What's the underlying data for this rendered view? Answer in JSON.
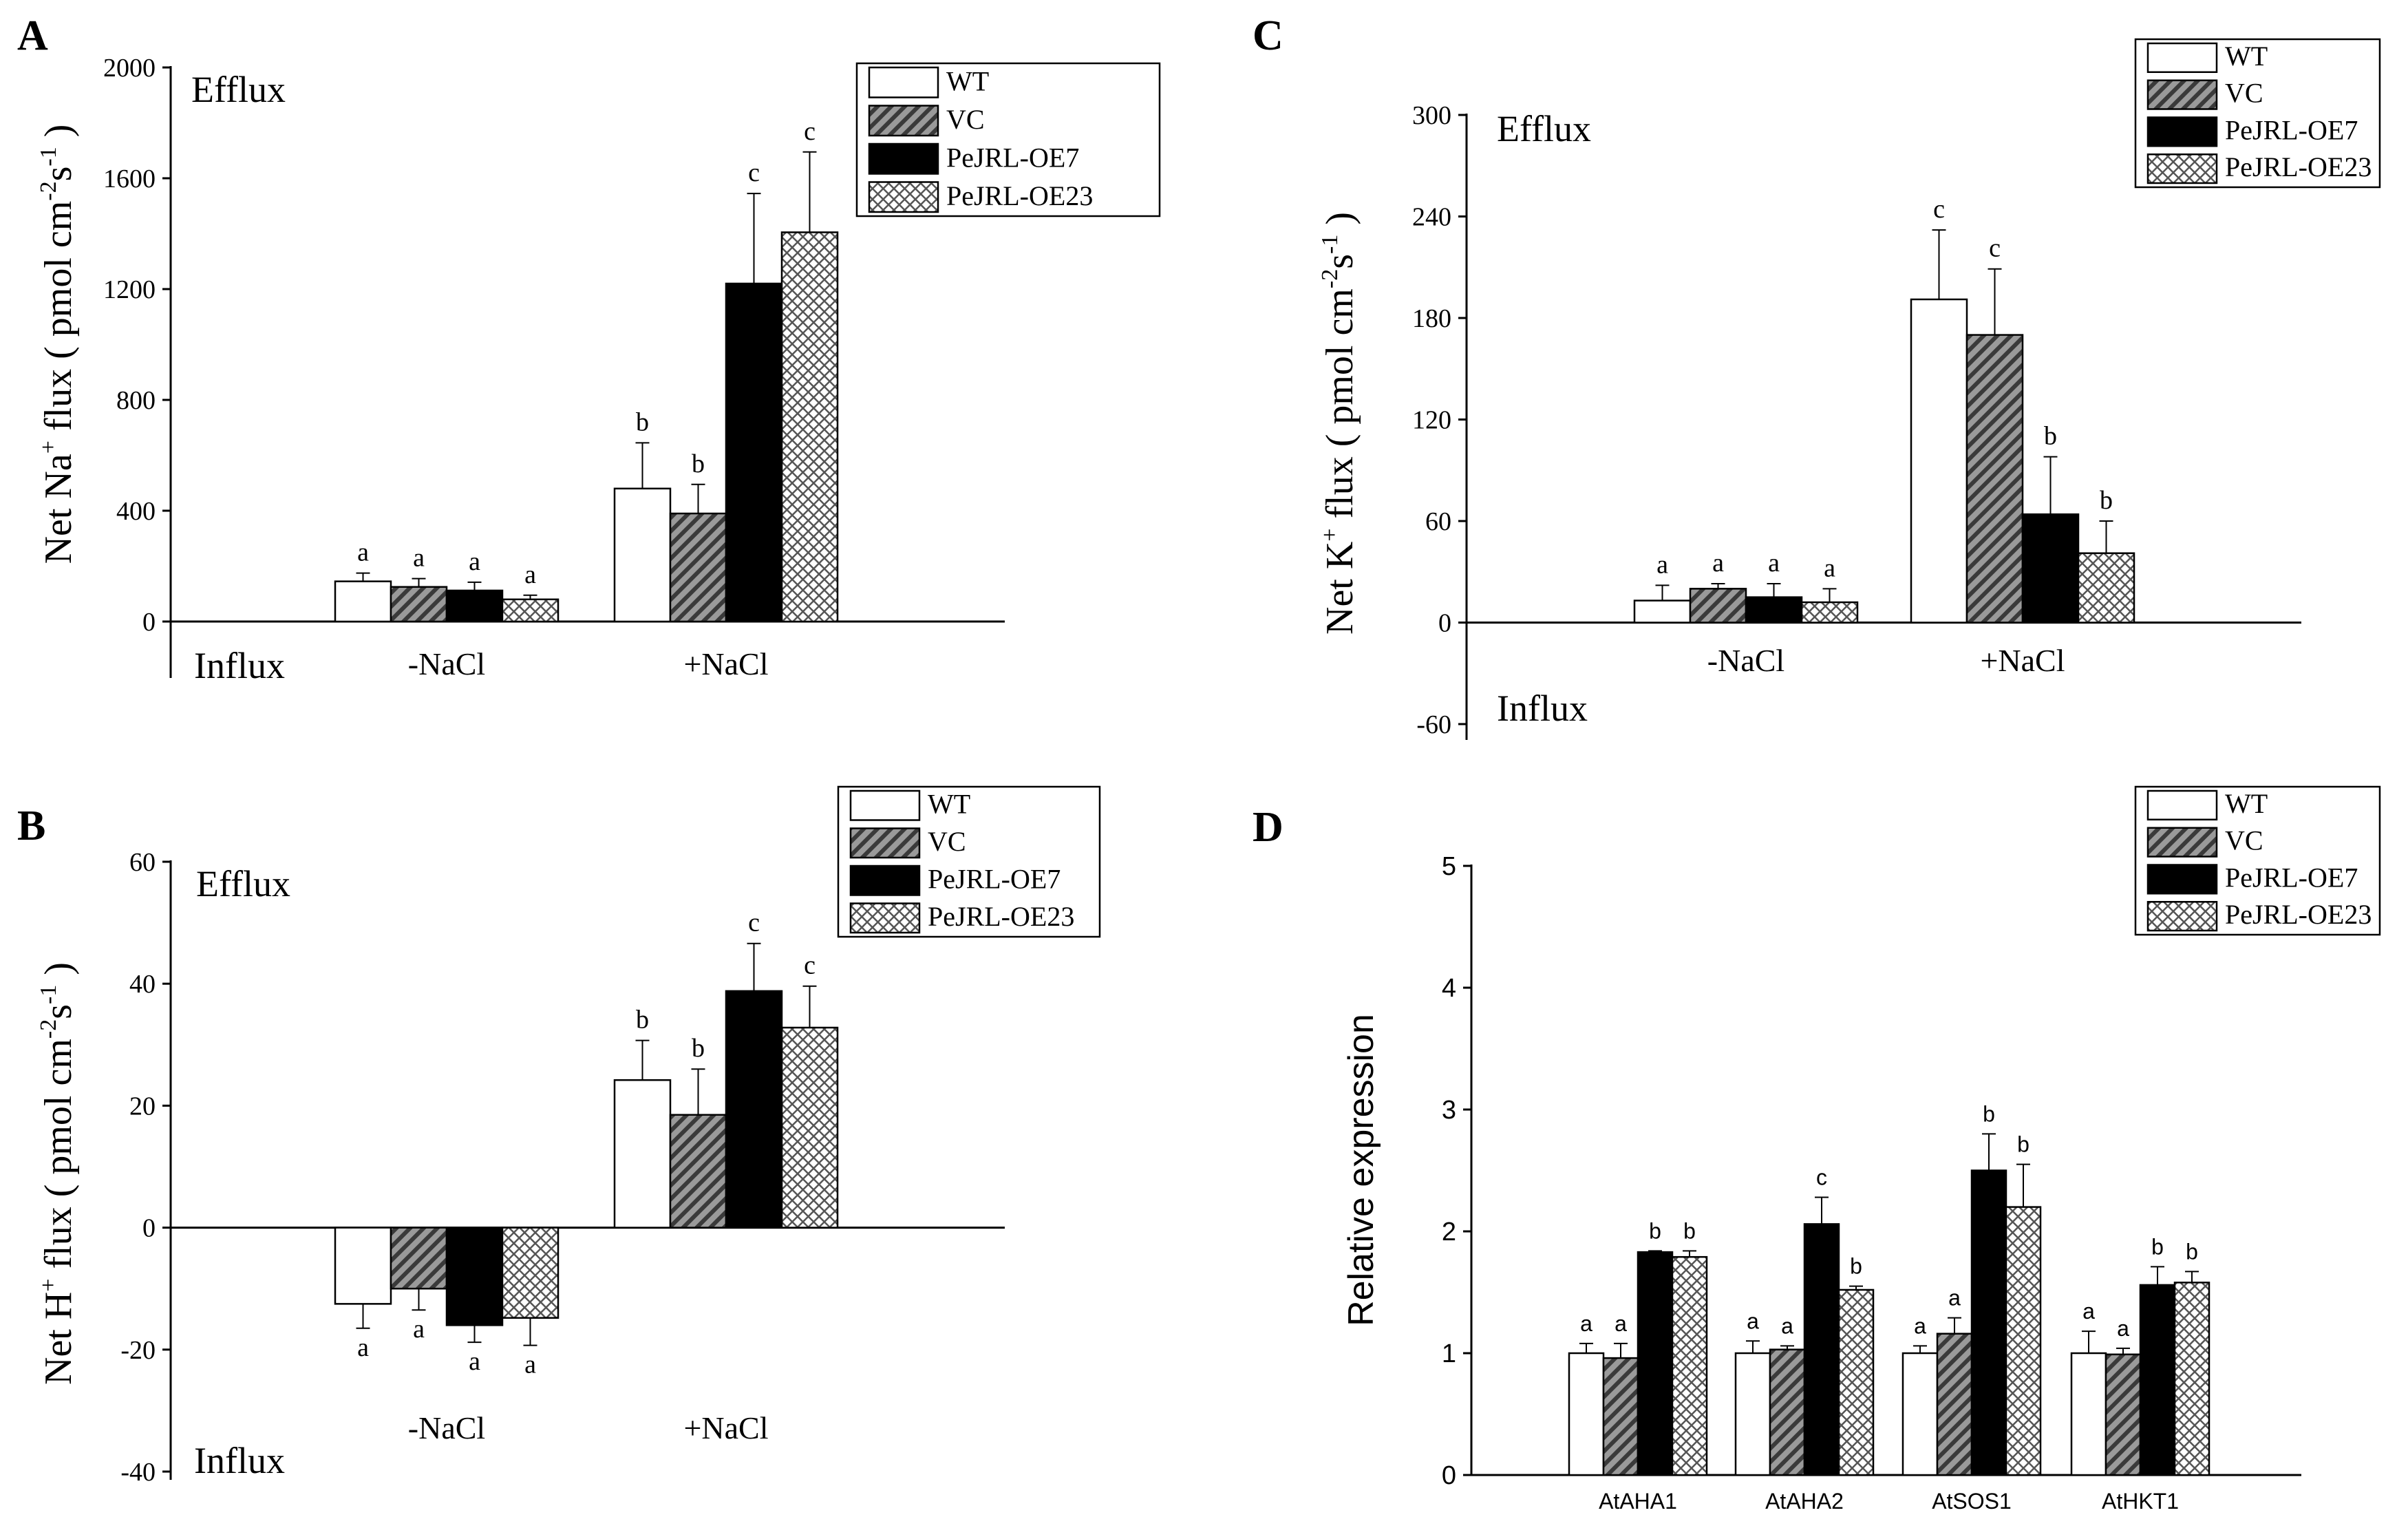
{
  "legend": [
    "WT",
    "VC",
    "PeJRL-OE7",
    "PeJRL-OE23"
  ],
  "chart_data": [
    {
      "panel": "A",
      "type": "bar",
      "ylabel_parts": [
        "Net Na",
        "+",
        " flux ( pmol cm",
        "-2",
        "s",
        "-1",
        " )"
      ],
      "annotations": {
        "top": "Efflux",
        "bottom": "Influx"
      },
      "ylim": [
        0,
        2000
      ],
      "yticks": [
        0,
        400,
        800,
        1200,
        1600,
        2000
      ],
      "categories": [
        "-NaCl",
        "+NaCl"
      ],
      "series": [
        {
          "name": "WT",
          "values": [
            145,
            480
          ],
          "errors": [
            30,
            165
          ],
          "letters": [
            "a",
            "b"
          ]
        },
        {
          "name": "VC",
          "values": [
            125,
            390
          ],
          "errors": [
            30,
            105
          ],
          "letters": [
            "a",
            "b"
          ]
        },
        {
          "name": "PeJRL-OE7",
          "values": [
            112,
            1220
          ],
          "errors": [
            30,
            325
          ],
          "letters": [
            "a",
            "c"
          ]
        },
        {
          "name": "PeJRL-OE23",
          "values": [
            80,
            1405
          ],
          "errors": [
            15,
            290
          ],
          "letters": [
            "a",
            "c"
          ]
        }
      ]
    },
    {
      "panel": "B",
      "type": "bar",
      "ylabel_parts": [
        "Net H",
        "+",
        " flux ( pmol cm",
        "-2",
        "s",
        "-1",
        " )"
      ],
      "annotations": {
        "top": "Efflux",
        "bottom": "Influx"
      },
      "ylim": [
        -40,
        60
      ],
      "yticks": [
        -40,
        -20,
        0,
        20,
        40,
        60
      ],
      "categories": [
        "-NaCl",
        "+NaCl"
      ],
      "series": [
        {
          "name": "WT",
          "values": [
            -12.5,
            24.2
          ],
          "errors": [
            4,
            6.5
          ],
          "letters": [
            "a",
            "b"
          ]
        },
        {
          "name": "VC",
          "values": [
            -10,
            18.5
          ],
          "errors": [
            3.5,
            7.5
          ],
          "letters": [
            "a",
            "b"
          ]
        },
        {
          "name": "PeJRL-OE7",
          "values": [
            -16,
            38.8
          ],
          "errors": [
            2.8,
            7.8
          ],
          "letters": [
            "a",
            "c"
          ]
        },
        {
          "name": "PeJRL-OE23",
          "values": [
            -14.8,
            32.8
          ],
          "errors": [
            4.5,
            6.8
          ],
          "letters": [
            "a",
            "c"
          ]
        }
      ]
    },
    {
      "panel": "C",
      "type": "bar",
      "ylabel_parts": [
        "Net K",
        "+",
        " flux ( pmol cm",
        "-2",
        "s",
        "-1",
        " )"
      ],
      "annotations": {
        "top": "Efflux",
        "bottom": "Influx"
      },
      "ylim": [
        -60,
        300
      ],
      "yticks": [
        -60,
        0,
        60,
        120,
        180,
        240,
        300
      ],
      "categories": [
        "-NaCl",
        "+NaCl"
      ],
      "series": [
        {
          "name": "WT",
          "values": [
            13,
            191
          ],
          "errors": [
            9,
            41
          ],
          "letters": [
            "a",
            "c"
          ]
        },
        {
          "name": "VC",
          "values": [
            20,
            170
          ],
          "errors": [
            3,
            39
          ],
          "letters": [
            "a",
            "c"
          ]
        },
        {
          "name": "PeJRL-OE7",
          "values": [
            15,
            64
          ],
          "errors": [
            8,
            34
          ],
          "letters": [
            "a",
            "b"
          ]
        },
        {
          "name": "PeJRL-OE23",
          "values": [
            12,
            41
          ],
          "errors": [
            8,
            19
          ],
          "letters": [
            "a",
            "b"
          ]
        }
      ]
    },
    {
      "panel": "D",
      "type": "bar",
      "ylabel": "Relative expression",
      "ylim": [
        0,
        5
      ],
      "yticks": [
        0,
        1,
        2,
        3,
        4,
        5
      ],
      "categories": [
        "AtAHA1",
        "AtAHA2",
        "AtSOS1",
        "AtHKT1"
      ],
      "series": [
        {
          "name": "WT",
          "values": [
            1.0,
            1.0,
            1.0,
            1.0
          ],
          "errors": [
            0.08,
            0.1,
            0.06,
            0.18
          ],
          "letters": [
            "a",
            "a",
            "a",
            "a"
          ]
        },
        {
          "name": "VC",
          "values": [
            0.96,
            1.03,
            1.16,
            0.99
          ],
          "errors": [
            0.12,
            0.03,
            0.13,
            0.05
          ],
          "letters": [
            "a",
            "a",
            "a",
            "a"
          ]
        },
        {
          "name": "PeJRL-OE7",
          "values": [
            1.83,
            2.06,
            2.5,
            1.56
          ],
          "errors": [
            0.01,
            0.22,
            0.3,
            0.15
          ],
          "letters": [
            "b",
            "c",
            "b",
            "b"
          ]
        },
        {
          "name": "PeJRL-OE23",
          "values": [
            1.79,
            1.52,
            2.2,
            1.58
          ],
          "errors": [
            0.05,
            0.03,
            0.35,
            0.09
          ],
          "letters": [
            "b",
            "b",
            "b",
            "b"
          ]
        }
      ]
    }
  ]
}
